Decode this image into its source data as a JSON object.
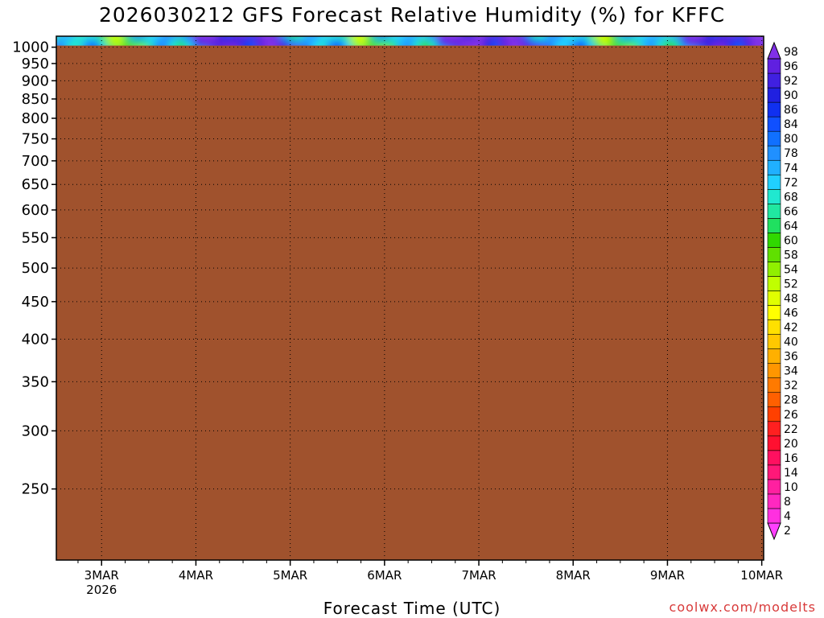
{
  "chart_data": {
    "type": "heatmap",
    "title": "2026030212 GFS Forecast Relative Humidity (%) for KFFC",
    "xlabel": "Forecast Time (UTC)",
    "ylabel": "",
    "x_range_days": [
      -0.48,
      7.02
    ],
    "y_range_hpa": [
      1035,
      200
    ],
    "x_ticks": [
      {
        "day": 0,
        "label": "3MAR",
        "sublabel": "2026"
      },
      {
        "day": 1,
        "label": "4MAR"
      },
      {
        "day": 2,
        "label": "5MAR"
      },
      {
        "day": 3,
        "label": "6MAR"
      },
      {
        "day": 4,
        "label": "7MAR"
      },
      {
        "day": 5,
        "label": "8MAR"
      },
      {
        "day": 6,
        "label": "9MAR"
      },
      {
        "day": 7,
        "label": "10MAR"
      }
    ],
    "y_ticks": [
      250,
      300,
      350,
      400,
      450,
      500,
      550,
      600,
      650,
      700,
      750,
      800,
      850,
      900,
      950,
      1000
    ],
    "ground_level_hpa": 1005,
    "colorbar": {
      "levels": [
        2,
        4,
        8,
        10,
        14,
        16,
        20,
        22,
        26,
        28,
        32,
        34,
        36,
        40,
        42,
        46,
        48,
        52,
        54,
        58,
        60,
        64,
        66,
        68,
        72,
        74,
        78,
        80,
        84,
        86,
        90,
        92,
        96,
        98
      ],
      "colors": [
        "#ff40ff",
        "#ff30e0",
        "#ff28c0",
        "#ff20a0",
        "#ff1878",
        "#ff1060",
        "#ff1030",
        "#ff2020",
        "#ff4000",
        "#ff6000",
        "#ff7a00",
        "#ff9600",
        "#ffb000",
        "#ffc800",
        "#ffe000",
        "#ffff00",
        "#e0ff00",
        "#c0ff00",
        "#90f000",
        "#60e000",
        "#30d800",
        "#20e060",
        "#20e8a0",
        "#20e8d0",
        "#20d0ff",
        "#20b0ff",
        "#2090ff",
        "#1070ff",
        "#1050ff",
        "#1030f0",
        "#2020e0",
        "#4020e0",
        "#6020e0",
        "#8030e8"
      ]
    },
    "ground_color": "#a0522d",
    "grid": true
  },
  "credit": "coolwx.com/modelts"
}
